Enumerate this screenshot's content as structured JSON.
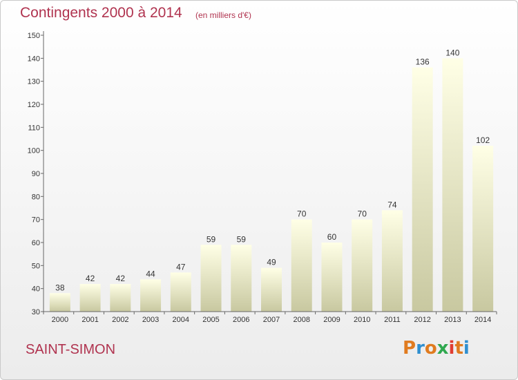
{
  "header": {
    "title": "Contingents 2000 à 2014",
    "subtitle": "(en milliers d'€)"
  },
  "footer": {
    "town": "SAINT-SIMON",
    "logo_text": "Proxiti",
    "logo_colors": [
      "#e07b1f",
      "#2f8fd0",
      "#e07b1f",
      "#2fa84f",
      "#e03c31",
      "#e07b1f",
      "#2f8fd0"
    ]
  },
  "colors": {
    "title": "#b0334f",
    "bar_light": "#ffffe6",
    "bar_dark": "#c8c8a0",
    "axis": "#666666"
  },
  "chart_data": {
    "type": "bar",
    "categories": [
      "2000",
      "2001",
      "2002",
      "2003",
      "2004",
      "2005",
      "2006",
      "2007",
      "2008",
      "2009",
      "2010",
      "2011",
      "2012",
      "2013",
      "2014"
    ],
    "values": [
      38,
      42,
      42,
      44,
      47,
      59,
      59,
      49,
      70,
      60,
      70,
      74,
      136,
      140,
      102
    ],
    "title": "Contingents 2000 à 2014",
    "subtitle": "(en milliers d'€)",
    "xlabel": "",
    "ylabel": "",
    "ylim": [
      30,
      150
    ],
    "yticks": [
      30,
      40,
      50,
      60,
      70,
      80,
      90,
      100,
      110,
      120,
      130,
      140,
      150
    ],
    "grid": false,
    "legend": "none"
  }
}
